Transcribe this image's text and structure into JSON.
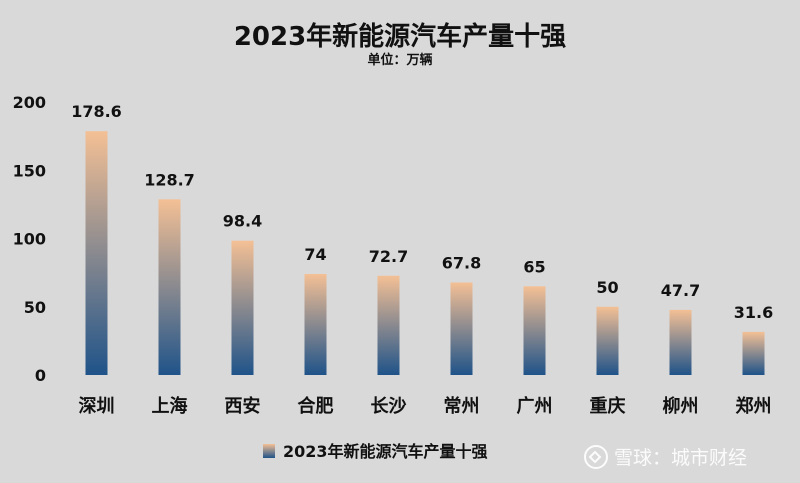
{
  "chart_data": {
    "type": "bar",
    "title": "2023年新能源汽车产量十强",
    "subtitle": "单位：万辆",
    "categories": [
      "深圳",
      "上海",
      "西安",
      "合肥",
      "长沙",
      "常州",
      "广州",
      "重庆",
      "柳州",
      "郑州"
    ],
    "series": [
      {
        "name": "2023年新能源汽车产量十强",
        "values": [
          178.6,
          128.7,
          98.4,
          74,
          72.7,
          67.8,
          65,
          50,
          47.7,
          31.6
        ]
      }
    ],
    "data_labels": [
      "178.6",
      "128.7",
      "98.4",
      "74",
      "72.7",
      "67.8",
      "65",
      "50",
      "47.7",
      "31.6"
    ],
    "yticks": [
      0,
      50,
      100,
      150,
      200
    ],
    "ylim": [
      0,
      200
    ],
    "grid": false,
    "legend_position": "bottom",
    "colors": {
      "bar_top": "#f4c095",
      "bar_bottom": "#1f5389",
      "background": "#d9d9d9"
    }
  },
  "watermark": {
    "icon": "snowball-logo-icon",
    "text": "雪球：城市财经"
  }
}
